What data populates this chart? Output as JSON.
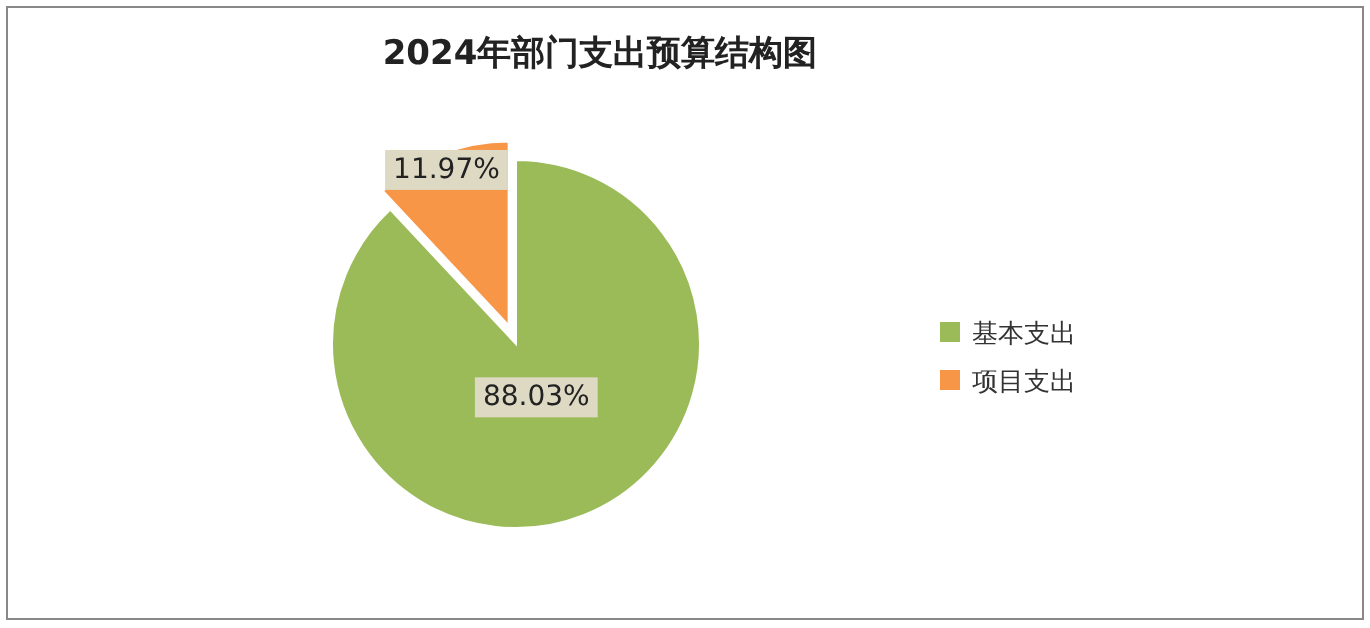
{
  "chart_data": {
    "type": "pie",
    "title": "2024年部门支出预算结构图",
    "categories": [
      "基本支出",
      "项目支出"
    ],
    "values": [
      88.03,
      11.97
    ],
    "colors": [
      "#9bbb59",
      "#f79646"
    ],
    "value_labels": [
      "88.03%",
      "11.97%"
    ],
    "legend": "right"
  }
}
